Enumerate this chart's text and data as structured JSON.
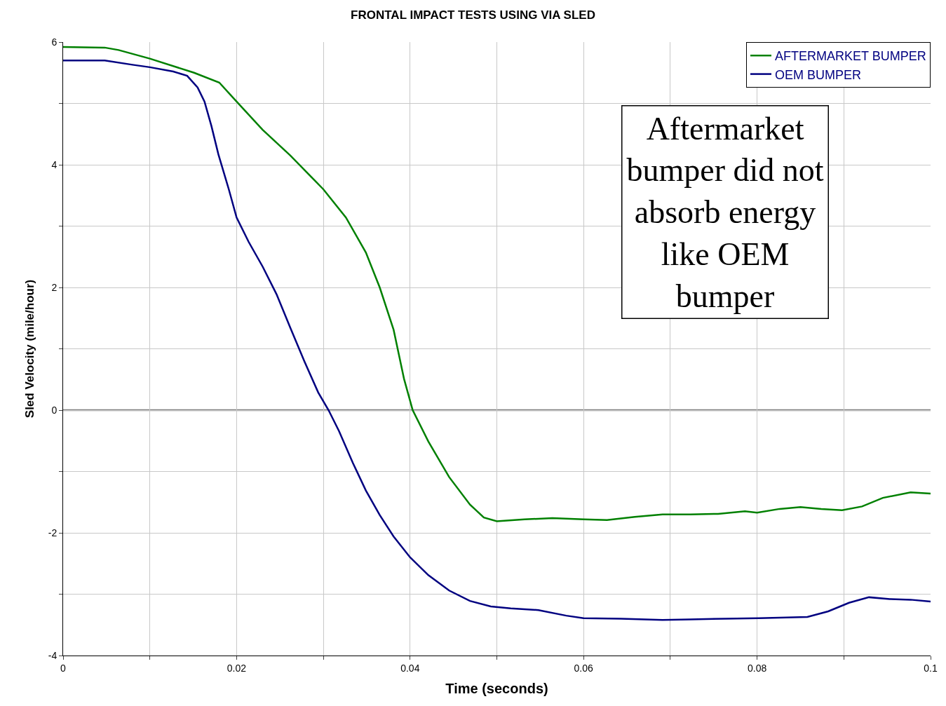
{
  "chart_data": {
    "type": "line",
    "title": "FRONTAL IMPACT TESTS USING VIA SLED",
    "xlabel": "Time (seconds)",
    "ylabel": "Sled Velocity (mile/hour)",
    "annotations": [
      "Aftermarket\nbumper did not\nabsorb energy\nlike OEM\nbumper"
    ],
    "series": [
      {
        "name": "AFTERMARKET BUMPER",
        "color": "#008000",
        "x": [
          0,
          0.0048,
          0.0064,
          0.01,
          0.0151,
          0.018,
          0.02,
          0.023,
          0.0262,
          0.03,
          0.0326,
          0.0349,
          0.0365,
          0.0381,
          0.0393,
          0.0403,
          0.0421,
          0.0445,
          0.0469,
          0.0485,
          0.05,
          0.0532,
          0.0564,
          0.06,
          0.0627,
          0.0659,
          0.0691,
          0.0723,
          0.0755,
          0.0786,
          0.08,
          0.0826,
          0.085,
          0.0874,
          0.0898,
          0.0921,
          0.0945,
          0.0977,
          0.1
        ],
        "values": [
          5.92,
          5.91,
          5.87,
          5.73,
          5.5,
          5.34,
          5.03,
          4.57,
          4.15,
          3.6,
          3.14,
          2.57,
          2.0,
          1.31,
          0.51,
          0,
          -0.51,
          -1.09,
          -1.54,
          -1.75,
          -1.81,
          -1.78,
          -1.76,
          -1.78,
          -1.79,
          -1.74,
          -1.7,
          -1.7,
          -1.69,
          -1.65,
          -1.67,
          -1.61,
          -1.58,
          -1.61,
          -1.63,
          -1.57,
          -1.43,
          -1.34,
          -1.36
        ]
      },
      {
        "name": "OEM BUMPER",
        "color": "#000080",
        "x": [
          0,
          0.0048,
          0.008,
          0.01,
          0.0127,
          0.0143,
          0.0155,
          0.0163,
          0.0171,
          0.0179,
          0.0191,
          0.02,
          0.0214,
          0.023,
          0.0246,
          0.0262,
          0.0278,
          0.0294,
          0.0306,
          0.0318,
          0.0334,
          0.0349,
          0.0365,
          0.0381,
          0.04,
          0.0421,
          0.0445,
          0.0469,
          0.0493,
          0.0516,
          0.0548,
          0.058,
          0.06,
          0.0643,
          0.0691,
          0.0723,
          0.0763,
          0.0802,
          0.0858,
          0.0882,
          0.0906,
          0.0929,
          0.0953,
          0.0977,
          0.1
        ],
        "values": [
          5.7,
          5.7,
          5.63,
          5.59,
          5.52,
          5.45,
          5.26,
          5.03,
          4.63,
          4.17,
          3.6,
          3.14,
          2.74,
          2.34,
          1.89,
          1.34,
          0.8,
          0.29,
          0,
          -0.34,
          -0.86,
          -1.31,
          -1.71,
          -2.06,
          -2.4,
          -2.69,
          -2.94,
          -3.11,
          -3.2,
          -3.23,
          -3.26,
          -3.35,
          -3.39,
          -3.4,
          -3.42,
          -3.41,
          -3.4,
          -3.39,
          -3.37,
          -3.28,
          -3.14,
          -3.05,
          -3.08,
          -3.09,
          -3.12
        ]
      }
    ],
    "xlim": [
      0,
      0.1
    ],
    "ylim": [
      -4,
      6
    ],
    "xticks": [
      0,
      {
        "value": 0.01,
        "label": null
      },
      0.02,
      {
        "value": 0.03,
        "label": null
      },
      0.04,
      {
        "value": 0.05,
        "label": null
      },
      0.06,
      {
        "value": 0.07,
        "label": null
      },
      0.08,
      {
        "value": 0.09,
        "label": null
      },
      0.1
    ],
    "yticks": [
      -4,
      {
        "value": -3,
        "label": null
      },
      -2,
      {
        "value": -1,
        "label": null
      },
      0,
      {
        "value": 1,
        "label": null
      },
      2,
      {
        "value": 3,
        "label": null
      },
      4,
      {
        "value": 5,
        "label": null
      },
      6
    ],
    "ref_lines": [
      {
        "axis": "y",
        "value": 0,
        "color": "#808080"
      }
    ],
    "grid": true,
    "legend": "top right",
    "line_style": "solid",
    "marker": "none"
  }
}
